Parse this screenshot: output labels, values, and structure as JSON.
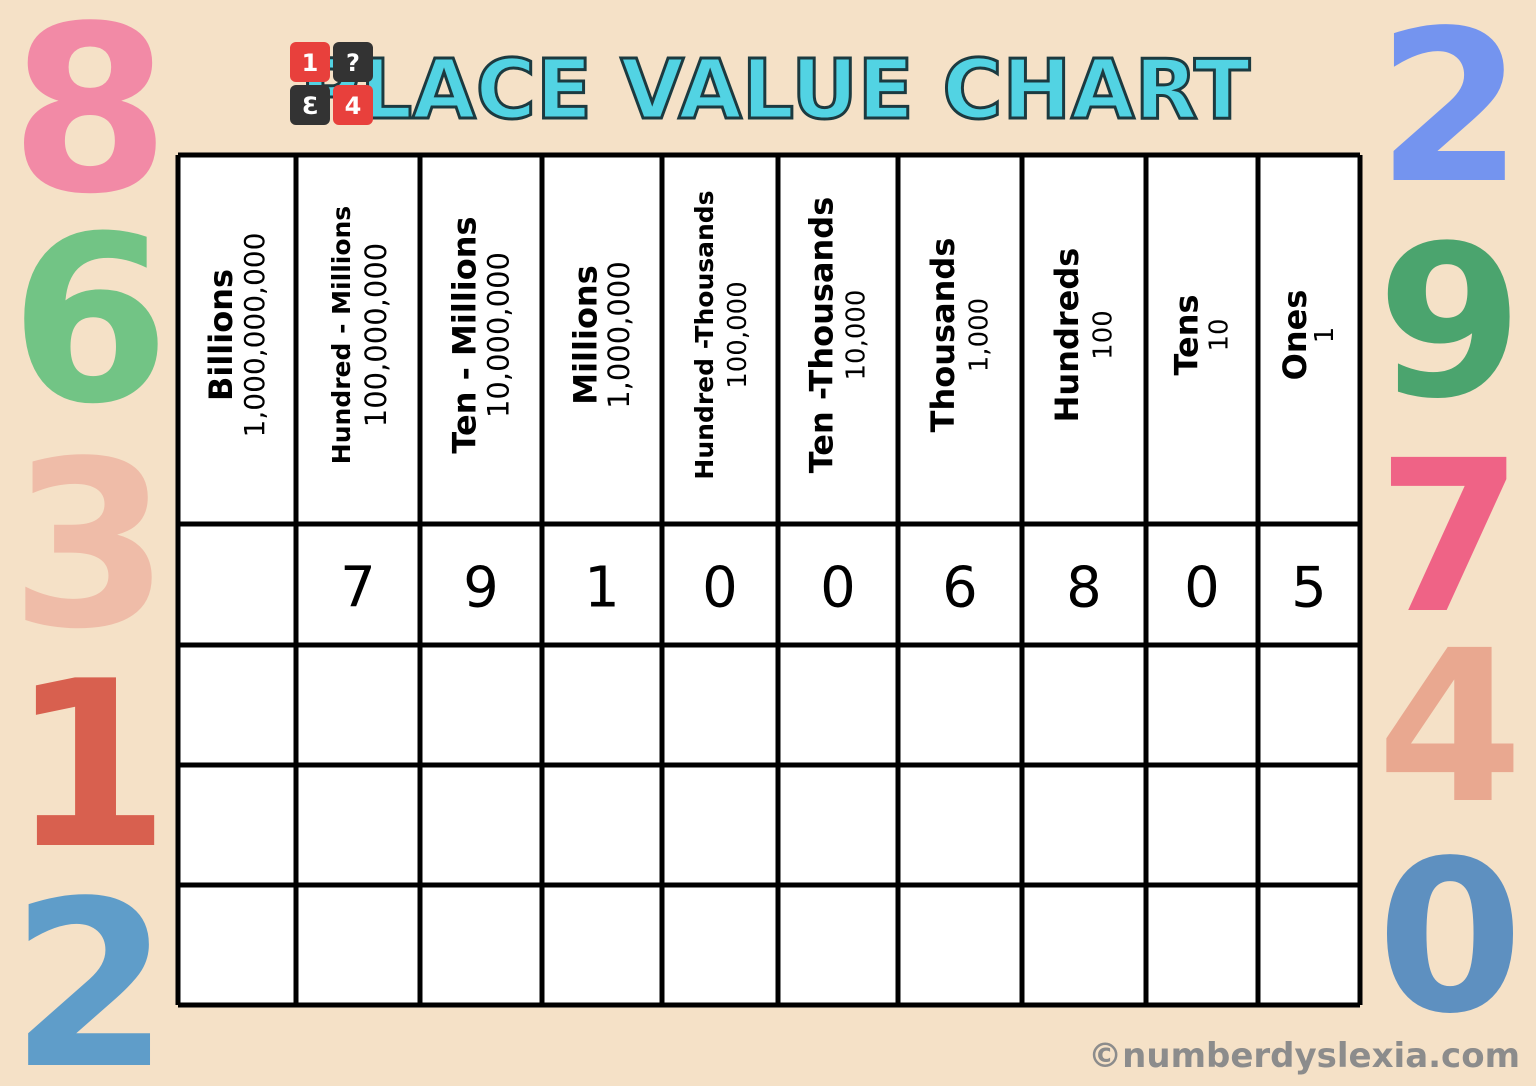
{
  "header": {
    "logo": [
      "1",
      "?",
      "3",
      "4"
    ],
    "title": "PLACE VALUE CHART"
  },
  "table": {
    "columns": [
      {
        "name": "Billions",
        "value": "1,000,000,000"
      },
      {
        "name": "Hundred - Millions",
        "value": "100,000,000"
      },
      {
        "name": "Ten - Millions",
        "value": "10,000,000"
      },
      {
        "name": "Millions",
        "value": "1,000,000"
      },
      {
        "name": "Hundred -Thousands",
        "value": "100,000"
      },
      {
        "name": "Ten -Thousands",
        "value": "10,000"
      },
      {
        "name": "Thousands",
        "value": "1,000"
      },
      {
        "name": "Hundreds",
        "value": "100"
      },
      {
        "name": "Tens",
        "value": "10"
      },
      {
        "name": "Ones",
        "value": "1"
      }
    ],
    "rows": [
      [
        null,
        7,
        9,
        1,
        0,
        0,
        6,
        8,
        0,
        5
      ]
    ]
  },
  "decorations": {
    "left": [
      {
        "char": "8",
        "color": "#f28aa6"
      },
      {
        "char": "6",
        "color": "#72c485"
      },
      {
        "char": "3",
        "color": "#efbca8"
      },
      {
        "char": "1",
        "color": "#d8604f"
      },
      {
        "char": "2",
        "color": "#5f9dc9"
      }
    ],
    "right": [
      {
        "char": "2",
        "color": "#7494ef"
      },
      {
        "char": "9",
        "color": "#4ba46e"
      },
      {
        "char": "7",
        "color": "#ef6386"
      },
      {
        "char": "4",
        "color": "#e9a890"
      },
      {
        "char": "0",
        "color": "#5e90c0"
      }
    ]
  },
  "footer": "©numberdyslexia.com"
}
